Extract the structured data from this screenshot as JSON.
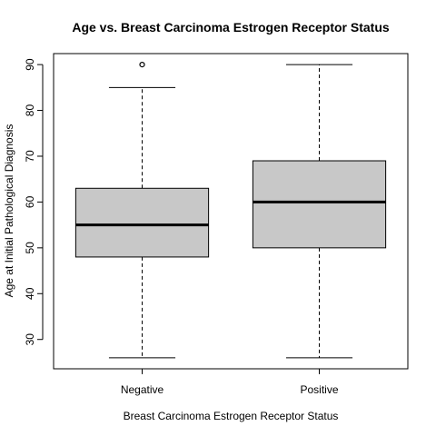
{
  "chart_data": {
    "type": "boxplot",
    "title": "Age vs. Breast Carcinoma Estrogen Receptor Status",
    "xlabel": "Breast Carcinoma Estrogen Receptor Status",
    "ylabel": "Age at Initial Pathological Diagnosis",
    "categories": [
      "Negative",
      "Positive"
    ],
    "ylim": [
      23.6,
      92.4
    ],
    "yticks": [
      30,
      40,
      50,
      60,
      70,
      80,
      90
    ],
    "boxes": [
      {
        "category": "Negative",
        "whisker_low": 26,
        "q1": 48,
        "median": 55,
        "q3": 63,
        "whisker_high": 85,
        "outliers": [
          90
        ]
      },
      {
        "category": "Positive",
        "whisker_low": 26,
        "q1": 50,
        "median": 60,
        "q3": 69,
        "whisker_high": 90,
        "outliers": []
      }
    ],
    "colors": {
      "box_fill": "#c8c8c8",
      "stroke": "#000000"
    },
    "grid": false,
    "legend": "none"
  }
}
